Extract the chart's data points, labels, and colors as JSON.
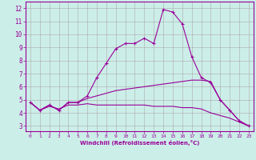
{
  "xlabel": "Windchill (Refroidissement éolien,°C)",
  "ylabel": "",
  "background_color": "#cceee8",
  "line_color": "#990099",
  "grid_color": "#aaaaaa",
  "text_color": "#990099",
  "xlim": [
    -0.5,
    23.5
  ],
  "ylim": [
    2.6,
    12.5
  ],
  "xticks": [
    0,
    1,
    2,
    3,
    4,
    5,
    6,
    7,
    8,
    9,
    10,
    11,
    12,
    13,
    14,
    15,
    16,
    17,
    18,
    19,
    20,
    21,
    22,
    23
  ],
  "yticks": [
    3,
    4,
    5,
    6,
    7,
    8,
    9,
    10,
    11,
    12
  ],
  "series": [
    {
      "x": [
        0,
        1,
        2,
        3,
        4,
        5,
        6,
        7,
        8,
        9,
        10,
        11,
        12,
        13,
        14,
        15,
        16,
        17,
        18,
        19,
        20,
        21,
        22,
        23
      ],
      "y": [
        4.8,
        4.2,
        4.6,
        4.2,
        4.8,
        4.8,
        5.3,
        6.7,
        7.8,
        8.9,
        9.3,
        9.3,
        9.7,
        9.3,
        11.9,
        11.7,
        10.8,
        8.3,
        6.7,
        6.3,
        5.0,
        4.2,
        3.4,
        3.0
      ],
      "marker": "+"
    },
    {
      "x": [
        0,
        1,
        2,
        3,
        4,
        5,
        6,
        7,
        8,
        9,
        10,
        11,
        12,
        13,
        14,
        15,
        16,
        17,
        18,
        19,
        20,
        21,
        22,
        23
      ],
      "y": [
        4.8,
        4.2,
        4.6,
        4.2,
        4.8,
        4.8,
        5.1,
        5.3,
        5.5,
        5.7,
        5.8,
        5.9,
        6.0,
        6.1,
        6.2,
        6.3,
        6.4,
        6.5,
        6.5,
        6.4,
        5.0,
        4.2,
        3.4,
        3.0
      ],
      "marker": null
    },
    {
      "x": [
        0,
        1,
        2,
        3,
        4,
        5,
        6,
        7,
        8,
        9,
        10,
        11,
        12,
        13,
        14,
        15,
        16,
        17,
        18,
        19,
        20,
        21,
        22,
        23
      ],
      "y": [
        4.8,
        4.2,
        4.5,
        4.3,
        4.6,
        4.6,
        4.7,
        4.6,
        4.6,
        4.6,
        4.6,
        4.6,
        4.6,
        4.5,
        4.5,
        4.5,
        4.4,
        4.4,
        4.3,
        4.0,
        3.8,
        3.6,
        3.3,
        3.0
      ],
      "marker": null
    }
  ]
}
